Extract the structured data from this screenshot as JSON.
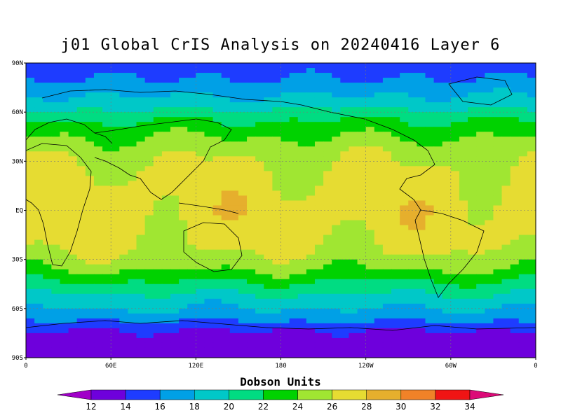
{
  "title": "j01 Global CrIS Analysis on 20240416 Layer 6",
  "map": {
    "lat_labels": [
      "90N",
      "60N",
      "30N",
      "EQ",
      "30S",
      "60S",
      "90S"
    ],
    "lat_values": [
      90,
      60,
      30,
      0,
      -30,
      -60,
      -90
    ],
    "lon_labels": [
      "0",
      "60E",
      "120E",
      "180",
      "120W",
      "60W",
      "0"
    ],
    "lon_values": [
      0,
      60,
      120,
      180,
      240,
      300,
      360
    ],
    "grid": true
  },
  "colorbar": {
    "title": "Dobson Units",
    "levels": [
      "12",
      "14",
      "16",
      "18",
      "20",
      "22",
      "24",
      "26",
      "28",
      "30",
      "32",
      "34"
    ],
    "colors": [
      "#a000c8",
      "#6e00dc",
      "#1e3cff",
      "#00a0e6",
      "#00c8c8",
      "#00dc82",
      "#00d200",
      "#a0e632",
      "#e6dc32",
      "#e6af2d",
      "#f08228",
      "#f01414",
      "#dc0a78"
    ]
  },
  "chart_data": {
    "type": "heatmap",
    "title": "j01 Global CrIS Analysis on 20240416 Layer 6",
    "xlabel": "",
    "ylabel": "",
    "units": "Dobson Units",
    "xlim": [
      0,
      360
    ],
    "ylim": [
      -90,
      90
    ],
    "zonal_profile": {
      "lat": [
        -90,
        -75,
        -65,
        -55,
        -45,
        -35,
        -20,
        0,
        20,
        35,
        45,
        55,
        65,
        80,
        90
      ],
      "value": [
        12.5,
        13.5,
        17,
        19,
        21.5,
        24.5,
        26.5,
        27,
        26.5,
        25.5,
        24,
        22,
        19,
        16,
        15
      ]
    }
  }
}
